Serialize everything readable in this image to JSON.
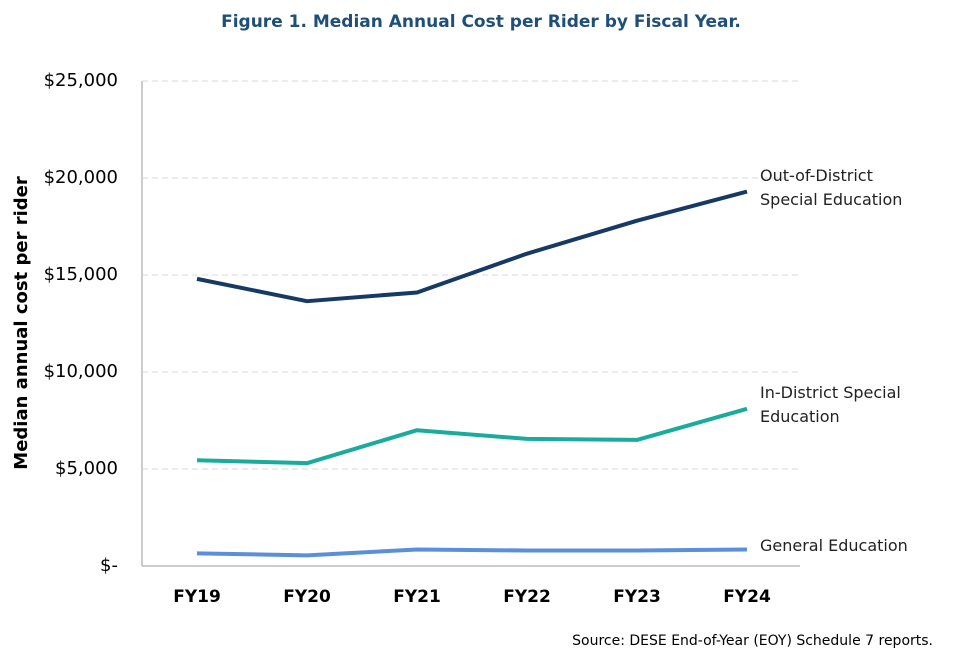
{
  "chart_data": {
    "type": "line",
    "title": "Figure 1. Median Annual Cost per Rider by Fiscal Year.",
    "y_label": "Median annual cost per rider",
    "source": "Source: DESE End-of-Year (EOY) Schedule 7 reports.",
    "categories": [
      "FY19",
      "FY20",
      "FY21",
      "FY22",
      "FY23",
      "FY24"
    ],
    "series": [
      {
        "name": "Out-of-District Special Education",
        "color": "#173a64",
        "values": [
          14800,
          13650,
          14100,
          16100,
          17800,
          19300
        ]
      },
      {
        "name": "In-District Special Education",
        "color": "#1aab9d",
        "values": [
          5450,
          5300,
          7000,
          6550,
          6500,
          8100
        ]
      },
      {
        "name": "General Education",
        "color": "#5b8fd9",
        "values": [
          650,
          550,
          850,
          800,
          800,
          850
        ]
      }
    ],
    "ylim": [
      0,
      25000
    ],
    "yticks": [
      {
        "value": 0,
        "label": "$-"
      },
      {
        "value": 5000,
        "label": "$5,000"
      },
      {
        "value": 10000,
        "label": "$10,000"
      },
      {
        "value": 15000,
        "label": "$15,000"
      },
      {
        "value": 20000,
        "label": "$20,000"
      },
      {
        "value": 25000,
        "label": "$25,000"
      }
    ],
    "grid": true
  }
}
